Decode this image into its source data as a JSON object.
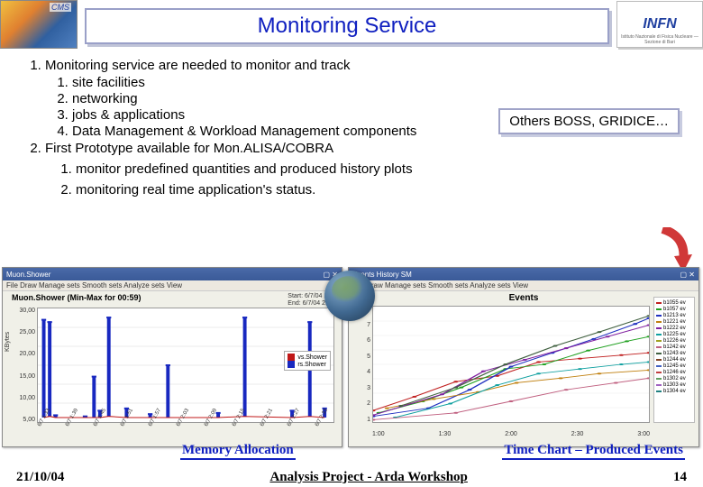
{
  "header": {
    "title": "Monitoring Service",
    "logo_left_text": "CMS",
    "logo_right_text": "INFN",
    "logo_right_sub": "Istituto Nazionale di Fisica Nucleare — Sezione di Bari"
  },
  "bullets": {
    "item1": "Monitoring service are needed to monitor and track",
    "sub1": "site facilities",
    "sub2": "networking",
    "sub3": "jobs & applications",
    "sub4": "Data Management & Workload Management components",
    "item2": "First Prototype available for Mon.ALISA/COBRA",
    "sub2_1": "monitor predefined quantities and produced history plots",
    "sub2_2": "monitoring real time application's status."
  },
  "callout": {
    "text": "Others BOSS, GRIDICE…"
  },
  "chart_left": {
    "window_title": "Muon.Shower",
    "menu": "File   Draw   Manage sets   Smooth sets   Analyze sets   View",
    "title": "Muon.Shower (Min-Max for 00:59)",
    "subtitle_1": "Start: 6/7/04 1:33",
    "subtitle_2": "End: 6/7/04 2:33",
    "ylabel": "KBytes",
    "yticks": [
      "30,00",
      "25,00",
      "20,00",
      "15,00",
      "10,00",
      "5,00"
    ],
    "xticks": [
      "6/7 1:33",
      "6/7 1:39",
      "6/7 1:45",
      "6/7 1:51",
      "6/7 1:57",
      "6/7 2:03",
      "6/7 2:09",
      "6/7 2:15",
      "6/7 2:21",
      "6/7 2:27",
      "6/7 2:33"
    ],
    "legend": [
      {
        "label": "vs.Shower",
        "color": "#c01818"
      },
      {
        "label": "rs.Shower",
        "color": "#1828c0"
      }
    ],
    "series_minmax": {
      "color_line": "#c01818",
      "color_bar": "#1828c0",
      "x": [
        0.02,
        0.04,
        0.06,
        0.16,
        0.19,
        0.21,
        0.24,
        0.3,
        0.38,
        0.44,
        0.61,
        0.7,
        0.86,
        0.92,
        0.97
      ],
      "top": [
        0.9,
        0.88,
        0.06,
        0.05,
        0.4,
        0.1,
        0.92,
        0.12,
        0.07,
        0.5,
        0.08,
        0.92,
        0.1,
        0.88,
        0.12
      ],
      "bot": [
        0.04,
        0.05,
        0.04,
        0.04,
        0.04,
        0.04,
        0.05,
        0.04,
        0.04,
        0.04,
        0.04,
        0.05,
        0.04,
        0.05,
        0.04
      ]
    }
  },
  "chart_right": {
    "window_title": "Events History SM",
    "menu": "File   Draw   Manage sets   Smooth sets   Analyze sets   View",
    "title": "Events",
    "yticks": [
      "8",
      "7",
      "6",
      "5",
      "4",
      "3",
      "2",
      "1"
    ],
    "xticks": [
      "1:00",
      "1:30",
      "2:00",
      "2:30",
      "3:00"
    ],
    "legend_items": [
      {
        "label": "b1055 ev",
        "color": "#c02020"
      },
      {
        "label": "b1057 ev",
        "color": "#20a020"
      },
      {
        "label": "b1213 ev",
        "color": "#2030c0"
      },
      {
        "label": "b1221 ev",
        "color": "#c08010"
      },
      {
        "label": "b1222 ev",
        "color": "#8020a0"
      },
      {
        "label": "b1225 ev",
        "color": "#10a0a0"
      },
      {
        "label": "b1226 ev",
        "color": "#a0a020"
      },
      {
        "label": "b1242 ev",
        "color": "#c06080"
      },
      {
        "label": "b1243 ev",
        "color": "#406040"
      },
      {
        "label": "b1244 ev",
        "color": "#804020"
      },
      {
        "label": "b1245 ev",
        "color": "#4060c0"
      },
      {
        "label": "b1246 ev",
        "color": "#c04040"
      },
      {
        "label": "b1302 ev",
        "color": "#60a060"
      },
      {
        "label": "b1303 ev",
        "color": "#a060c0"
      },
      {
        "label": "b1304 ev",
        "color": "#208080"
      }
    ],
    "series": [
      {
        "color": "#c02020",
        "pts": [
          [
            0.0,
            0.1
          ],
          [
            0.15,
            0.22
          ],
          [
            0.3,
            0.35
          ],
          [
            0.45,
            0.4
          ],
          [
            0.6,
            0.52
          ],
          [
            0.75,
            0.55
          ],
          [
            0.9,
            0.58
          ],
          [
            1.0,
            0.6
          ]
        ]
      },
      {
        "color": "#20a020",
        "pts": [
          [
            0.02,
            0.08
          ],
          [
            0.18,
            0.18
          ],
          [
            0.32,
            0.3
          ],
          [
            0.48,
            0.46
          ],
          [
            0.62,
            0.5
          ],
          [
            0.78,
            0.62
          ],
          [
            0.92,
            0.7
          ],
          [
            1.0,
            0.74
          ]
        ]
      },
      {
        "color": "#2030c0",
        "pts": [
          [
            0.0,
            0.05
          ],
          [
            0.2,
            0.12
          ],
          [
            0.35,
            0.28
          ],
          [
            0.5,
            0.48
          ],
          [
            0.65,
            0.6
          ],
          [
            0.8,
            0.72
          ],
          [
            0.95,
            0.85
          ],
          [
            1.0,
            0.9
          ]
        ]
      },
      {
        "color": "#c08010",
        "pts": [
          [
            0.05,
            0.12
          ],
          [
            0.22,
            0.2
          ],
          [
            0.38,
            0.26
          ],
          [
            0.52,
            0.34
          ],
          [
            0.68,
            0.38
          ],
          [
            0.82,
            0.42
          ],
          [
            1.0,
            0.45
          ]
        ]
      },
      {
        "color": "#8020a0",
        "pts": [
          [
            0.0,
            0.06
          ],
          [
            0.25,
            0.24
          ],
          [
            0.4,
            0.44
          ],
          [
            0.55,
            0.54
          ],
          [
            0.7,
            0.64
          ],
          [
            0.85,
            0.74
          ],
          [
            1.0,
            0.84
          ]
        ]
      },
      {
        "color": "#10a0a0",
        "pts": [
          [
            0.08,
            0.04
          ],
          [
            0.28,
            0.16
          ],
          [
            0.45,
            0.32
          ],
          [
            0.6,
            0.42
          ],
          [
            0.75,
            0.46
          ],
          [
            0.9,
            0.5
          ],
          [
            1.0,
            0.52
          ]
        ]
      },
      {
        "color": "#c06080",
        "pts": [
          [
            0.0,
            0.02
          ],
          [
            0.3,
            0.08
          ],
          [
            0.5,
            0.18
          ],
          [
            0.7,
            0.28
          ],
          [
            0.88,
            0.34
          ],
          [
            1.0,
            0.38
          ]
        ]
      },
      {
        "color": "#406040",
        "pts": [
          [
            0.1,
            0.14
          ],
          [
            0.3,
            0.3
          ],
          [
            0.48,
            0.5
          ],
          [
            0.66,
            0.66
          ],
          [
            0.82,
            0.78
          ],
          [
            1.0,
            0.92
          ]
        ]
      }
    ]
  },
  "captions": {
    "left": "Memory Allocation",
    "right": "Time Chart – Produced Events"
  },
  "footer": {
    "date": "21/10/04",
    "center": "Analysis Project - Arda Workshop",
    "page": "14"
  },
  "arrow": {
    "color": "#d03838"
  }
}
